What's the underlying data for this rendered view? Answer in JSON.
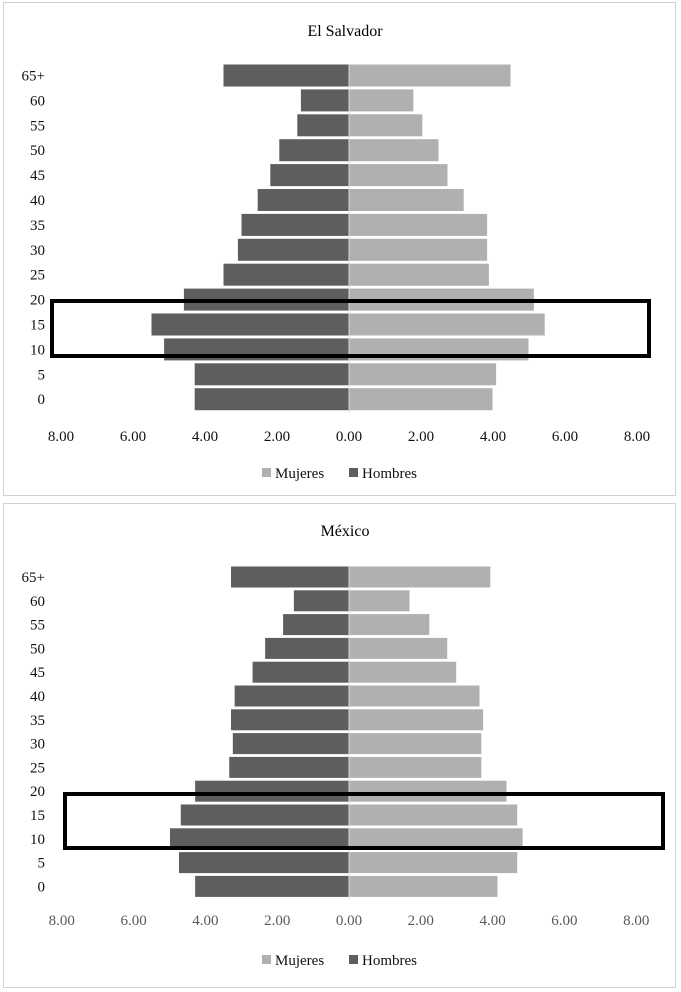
{
  "chart_data": [
    {
      "type": "bar",
      "orientation": "horizontal-population-pyramid",
      "title": "El Salvador",
      "categories": [
        "0",
        "5",
        "10",
        "15",
        "20",
        "25",
        "30",
        "35",
        "40",
        "45",
        "50",
        "55",
        "60",
        "65+"
      ],
      "x_ticks": [
        "8.00",
        "6.00",
        "4.00",
        "2.00",
        "0.00",
        "2.00",
        "4.00",
        "6.00",
        "8.00"
      ],
      "xlim": [
        -8,
        8
      ],
      "series": [
        {
          "name": "Mujeres",
          "color": "#b0b0b0",
          "side": "right",
          "values": [
            4.0,
            4.1,
            5.0,
            5.45,
            5.15,
            3.9,
            3.85,
            3.85,
            3.2,
            2.75,
            2.5,
            2.05,
            1.8,
            4.5
          ]
        },
        {
          "name": "Hombres",
          "color": "#5e5e5e",
          "side": "left",
          "values": [
            4.3,
            4.3,
            5.15,
            5.5,
            4.6,
            3.5,
            3.1,
            3.0,
            2.55,
            2.2,
            1.95,
            1.45,
            1.35,
            3.5
          ]
        }
      ],
      "highlight": {
        "categories": [
          "10",
          "15",
          "20"
        ]
      },
      "legend_position": "bottom"
    },
    {
      "type": "bar",
      "orientation": "horizontal-population-pyramid",
      "title": "México",
      "categories": [
        "0",
        "5",
        "10",
        "15",
        "20",
        "25",
        "30",
        "35",
        "40",
        "45",
        "50",
        "55",
        "60",
        "65+"
      ],
      "x_ticks": [
        "8.00",
        "6.00",
        "4.00",
        "2.00",
        "0.00",
        "2.00",
        "4.00",
        "6.00",
        "8.00"
      ],
      "xlim": [
        -8,
        8
      ],
      "series": [
        {
          "name": "Mujeres",
          "color": "#b0b0b0",
          "side": "right",
          "values": [
            4.15,
            4.7,
            4.85,
            4.7,
            4.4,
            3.7,
            3.7,
            3.75,
            3.65,
            3.0,
            2.75,
            2.25,
            1.7,
            3.95
          ]
        },
        {
          "name": "Hombres",
          "color": "#5e5e5e",
          "side": "left",
          "values": [
            4.3,
            4.75,
            5.0,
            4.7,
            4.3,
            3.35,
            3.25,
            3.3,
            3.2,
            2.7,
            2.35,
            1.85,
            1.55,
            3.3
          ]
        }
      ],
      "highlight": {
        "categories": [
          "10",
          "15",
          "20"
        ]
      },
      "legend_position": "bottom"
    }
  ]
}
